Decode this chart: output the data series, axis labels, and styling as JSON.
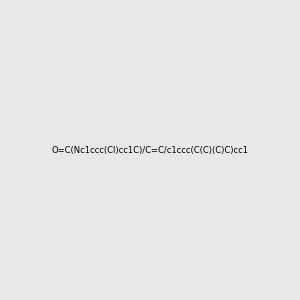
{
  "smiles": "O=C(Nc1ccc(Cl)cc1C)/C=C/c1ccc(C(C)(C)C)cc1",
  "title": "",
  "background_color": "#e8e8e8",
  "bond_color": "#2d2d2d",
  "N_color": "#0000cc",
  "O_color": "#cc2200",
  "Cl_color": "#2d8a2d",
  "figsize": [
    3.0,
    3.0
  ],
  "dpi": 100
}
